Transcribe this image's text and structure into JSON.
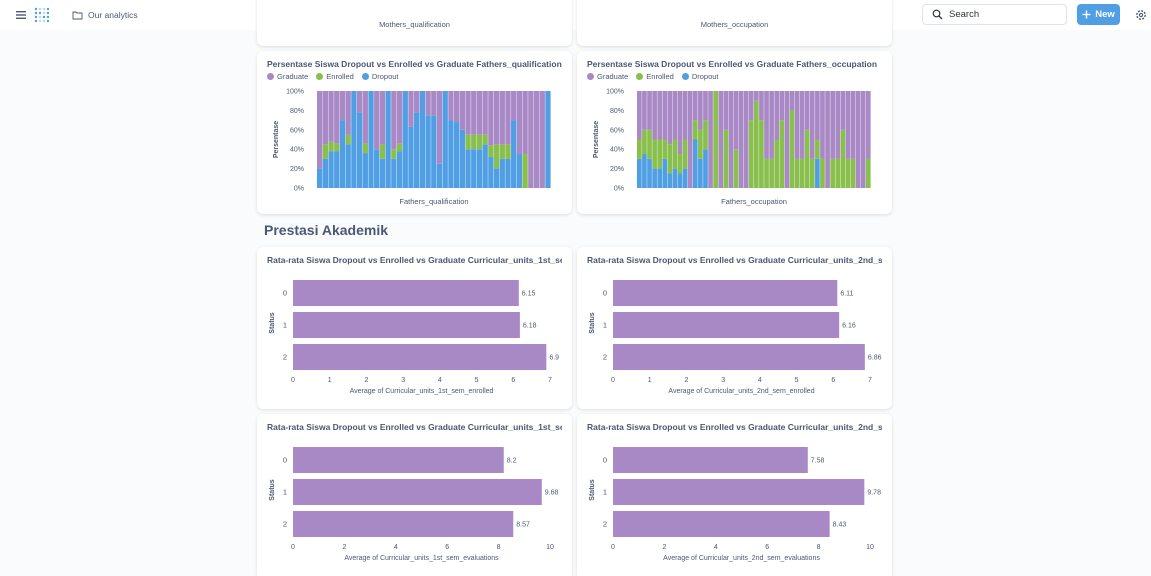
{
  "header": {
    "collection_label": "Our analytics",
    "search_placeholder": "Search",
    "new_label": "New"
  },
  "top_cards": {
    "left_xlabel": "Mothers_qualification",
    "right_xlabel": "Mothers_occupation"
  },
  "section": {
    "heading": "Prestasi Akademik"
  },
  "colors": {
    "graduate": "#a989c5",
    "enrolled": "#88bf4d",
    "dropout": "#509ee3",
    "accent": "#509ee3"
  },
  "stacked_cards": [
    {
      "title": "Persentase Siswa Dropout vs Enrolled vs Graduate Fathers_qualification",
      "legend": [
        "Graduate",
        "Enrolled",
        "Dropout"
      ]
    },
    {
      "title": "Persentase Siswa Dropout vs Enrolled vs Graduate Fathers_occupation",
      "legend": [
        "Graduate",
        "Enrolled",
        "Dropout"
      ]
    }
  ],
  "bar_cards": [
    {
      "title": "Rata-rata Siswa Dropout vs Enrolled vs Graduate Curricular_units_1st_se..."
    },
    {
      "title": "Rata-rata Siswa Dropout vs Enrolled vs Graduate Curricular_units_2nd_s..."
    },
    {
      "title": "Rata-rata Siswa Dropout vs Enrolled vs Graduate Curricular_units_1st_se..."
    },
    {
      "title": "Rata-rata Siswa Dropout vs Enrolled vs Graduate Curricular_units_2nd_s..."
    }
  ],
  "chart_data": [
    {
      "type": "bar",
      "stacked": "percent",
      "xlabel": "Fathers_qualification",
      "ylabel": "Persentase",
      "y_ticks": [
        "0%",
        "20%",
        "40%",
        "60%",
        "80%",
        "100%"
      ],
      "series_names": [
        "Dropout",
        "Enrolled",
        "Graduate"
      ],
      "dropout": [
        0.2,
        0.3,
        0.38,
        0.38,
        0.7,
        0.45,
        1.0,
        0.78,
        0.36,
        1.0,
        0.4,
        0.3,
        1.0,
        0.3,
        0.38,
        1.0,
        0.63,
        0.78,
        1.0,
        0.75,
        0.75,
        0.25,
        1.0,
        0.7,
        0.68,
        0.6,
        0.4,
        0.4,
        0.4,
        0.45,
        0.32,
        0.2,
        0.3,
        0.3,
        0.7,
        0.35,
        0.0,
        0.0,
        0.0,
        0.0,
        1.0
      ],
      "enrolled": [
        0.0,
        0.15,
        0.1,
        0.08,
        0.0,
        0.1,
        0.0,
        0.0,
        0.1,
        0.0,
        0.0,
        0.15,
        0.0,
        0.1,
        0.08,
        0.0,
        0.0,
        0.0,
        0.0,
        0.0,
        0.0,
        0.0,
        0.0,
        0.0,
        0.0,
        0.0,
        0.15,
        0.15,
        0.15,
        0.1,
        0.12,
        0.25,
        0.15,
        0.15,
        0.0,
        0.0,
        0.35,
        0.0,
        0.0,
        0.0,
        0.0
      ],
      "graduate": [
        0.8,
        0.55,
        0.52,
        0.54,
        0.3,
        0.45,
        0.0,
        0.22,
        0.54,
        0.0,
        0.6,
        0.55,
        0.0,
        0.6,
        0.54,
        0.0,
        0.37,
        0.22,
        0.0,
        0.25,
        0.25,
        0.75,
        0.0,
        0.3,
        0.32,
        0.4,
        0.45,
        0.45,
        0.45,
        0.45,
        0.56,
        0.55,
        0.55,
        0.55,
        0.3,
        0.65,
        0.65,
        1.0,
        1.0,
        1.0,
        0.0
      ]
    },
    {
      "type": "bar",
      "stacked": "percent",
      "xlabel": "Fathers_occupation",
      "ylabel": "Persentase",
      "y_ticks": [
        "0%",
        "20%",
        "40%",
        "60%",
        "80%",
        "100%"
      ],
      "series_names": [
        "Dropout",
        "Enrolled",
        "Graduate"
      ],
      "dropout": [
        0.3,
        0.35,
        0.3,
        0.2,
        0.2,
        0.3,
        0.15,
        0.2,
        0.15,
        0.2,
        0.0,
        0.5,
        0.3,
        0.4,
        0.0,
        0.0,
        0.0,
        0.0,
        0.0,
        0.0,
        0.0,
        0.0,
        0.0,
        0.0,
        0.0,
        0.0,
        0.0,
        0.0,
        0.0,
        0.0,
        0.0,
        0.0,
        0.0,
        0.0,
        0.0,
        0.3,
        0.0,
        0.0,
        0.0,
        0.0,
        0.0,
        0.0,
        0.0,
        0.0,
        0.0,
        0.0
      ],
      "enrolled": [
        0.2,
        0.25,
        0.3,
        0.3,
        0.3,
        0.2,
        0.3,
        0.3,
        0.2,
        0.3,
        0.0,
        0.2,
        0.3,
        0.3,
        0.0,
        1.0,
        0.0,
        0.6,
        0.0,
        0.4,
        0.0,
        0.0,
        0.7,
        0.9,
        0.7,
        0.3,
        0.3,
        0.5,
        0.7,
        0.0,
        0.8,
        0.3,
        0.3,
        0.6,
        0.3,
        0.2,
        0.3,
        0.0,
        0.3,
        0.3,
        0.6,
        0.3,
        0.3,
        0.0,
        0.0,
        0.3
      ],
      "graduate": [
        0.5,
        0.4,
        0.4,
        0.5,
        0.5,
        0.5,
        0.55,
        0.5,
        0.65,
        0.5,
        1.0,
        0.3,
        0.4,
        0.3,
        1.0,
        0.0,
        1.0,
        0.4,
        1.0,
        0.6,
        1.0,
        1.0,
        0.3,
        0.1,
        0.3,
        0.7,
        0.7,
        0.5,
        0.3,
        1.0,
        0.2,
        0.7,
        0.7,
        0.4,
        0.7,
        0.5,
        0.7,
        1.0,
        0.7,
        0.7,
        0.4,
        0.7,
        0.7,
        1.0,
        1.0,
        0.7
      ]
    },
    {
      "type": "bar",
      "orientation": "horizontal",
      "categories": [
        "0",
        "1",
        "2"
      ],
      "values": [
        6.15,
        6.18,
        6.9
      ],
      "xlabel": "Average of Curricular_units_1st_sem_enrolled",
      "ylabel": "Status",
      "xlim": [
        0,
        7
      ],
      "x_ticks": [
        "0",
        "1",
        "2",
        "3",
        "4",
        "5",
        "6",
        "7"
      ]
    },
    {
      "type": "bar",
      "orientation": "horizontal",
      "categories": [
        "0",
        "1",
        "2"
      ],
      "values": [
        6.11,
        6.16,
        6.86
      ],
      "xlabel": "Average of Curricular_units_2nd_sem_enrolled",
      "ylabel": "Status",
      "xlim": [
        0,
        7
      ],
      "x_ticks": [
        "0",
        "1",
        "2",
        "3",
        "4",
        "5",
        "6",
        "7"
      ]
    },
    {
      "type": "bar",
      "orientation": "horizontal",
      "categories": [
        "0",
        "1",
        "2"
      ],
      "values": [
        8.2,
        9.68,
        8.57
      ],
      "xlabel": "Average of Curricular_units_1st_sem_evaluations",
      "ylabel": "Status",
      "xlim": [
        0,
        10
      ],
      "x_ticks": [
        "0",
        "2",
        "4",
        "6",
        "8",
        "10"
      ]
    },
    {
      "type": "bar",
      "orientation": "horizontal",
      "categories": [
        "0",
        "1",
        "2"
      ],
      "values": [
        7.58,
        9.78,
        8.43
      ],
      "xlabel": "Average of Curricular_units_2nd_sem_evaluations",
      "ylabel": "Status",
      "xlim": [
        0,
        10
      ],
      "x_ticks": [
        "0",
        "2",
        "4",
        "6",
        "8",
        "10"
      ]
    }
  ]
}
